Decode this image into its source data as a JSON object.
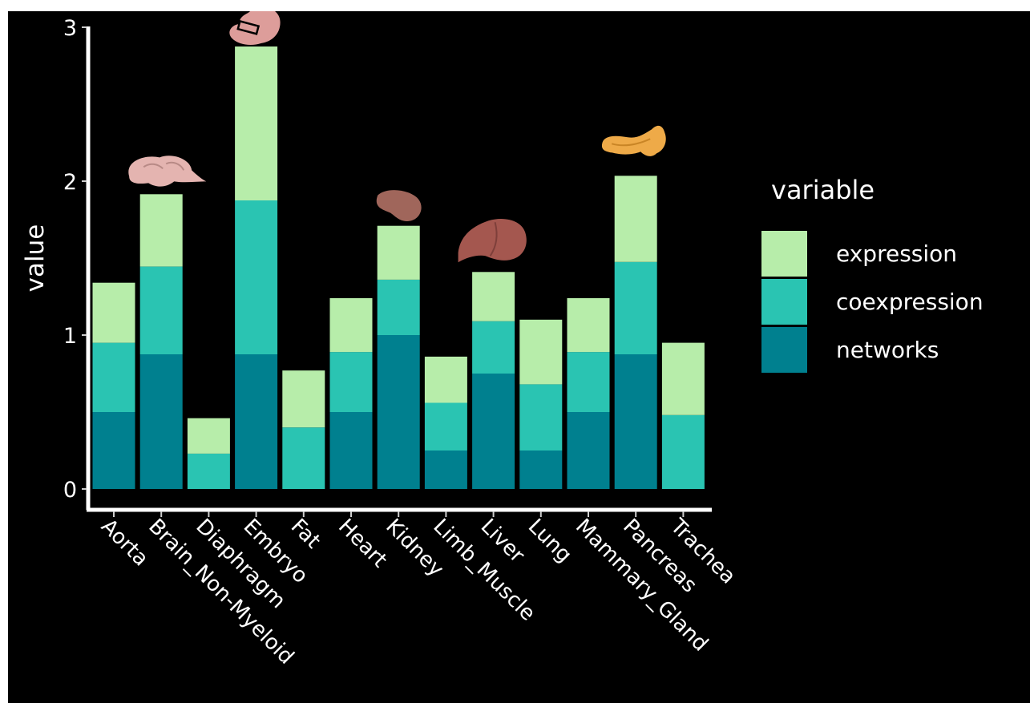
{
  "chart_data": {
    "type": "bar",
    "stacked": true,
    "categories": [
      "Aorta",
      "Brain_Non-Myeloid",
      "Diaphragm",
      "Embryo",
      "Fat",
      "Heart",
      "Kidney",
      "Limb_Muscle",
      "Liver",
      "Lung",
      "Mammary_Gland",
      "Pancreas",
      "Trachea"
    ],
    "series": [
      {
        "name": "networks",
        "color": "#00808f",
        "values": [
          0.5,
          0.875,
          0.0,
          0.875,
          0.0,
          0.5,
          1.0,
          0.25,
          0.75,
          0.25,
          0.5,
          0.875,
          0.0
        ]
      },
      {
        "name": "coexpression",
        "color": "#2ac4b2",
        "values": [
          0.45,
          0.57,
          0.23,
          1.0,
          0.4,
          0.39,
          0.36,
          0.31,
          0.34,
          0.43,
          0.39,
          0.6,
          0.48
        ]
      },
      {
        "name": "expression",
        "color": "#b7edaa",
        "values": [
          0.39,
          0.47,
          0.23,
          1.0,
          0.37,
          0.35,
          0.35,
          0.3,
          0.32,
          0.42,
          0.35,
          0.56,
          0.47
        ]
      }
    ],
    "ylabel": "value",
    "xlabel": "",
    "ylim": [
      0,
      3
    ],
    "yticks": [
      0,
      1,
      2,
      3
    ],
    "grid": false,
    "legend": {
      "title": "variable",
      "position": "right",
      "order": [
        "expression",
        "coexpression",
        "networks"
      ]
    },
    "organ_icons": [
      {
        "category": "Brain_Non-Myeloid",
        "icon": "brain-icon",
        "color": "#e4b4b0"
      },
      {
        "category": "Embryo",
        "icon": "embryo-icon",
        "color": "#dd9d9a"
      },
      {
        "category": "Kidney",
        "icon": "kidney-icon",
        "color": "#a0665b"
      },
      {
        "category": "Liver",
        "icon": "liver-icon",
        "color": "#a4574f"
      },
      {
        "category": "Pancreas",
        "icon": "pancreas-icon",
        "color": "#eeaa48"
      }
    ],
    "background": "#000000",
    "axis_color": "#ffffff"
  }
}
